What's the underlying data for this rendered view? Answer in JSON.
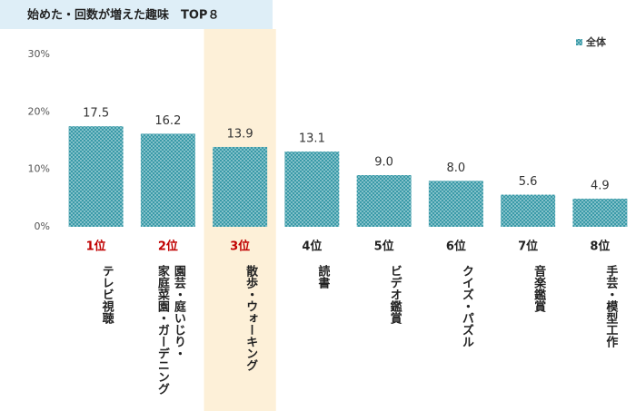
{
  "chart_data": {
    "type": "bar",
    "title": "始めた・回数が増えた趣味　TOP８",
    "categories": [
      "テレビ視聴",
      "園芸・庭いじり・\n家庭菜園・ガーデニング",
      "散歩・ウォーキング",
      "読書",
      "ビデオ鑑賞",
      "クイズ・パズル",
      "音楽鑑賞",
      "手芸・模型工作"
    ],
    "ranks": [
      "1位",
      "2位",
      "3位",
      "4位",
      "5位",
      "6位",
      "7位",
      "8位"
    ],
    "series": [
      {
        "name": "全体",
        "color": "#3a9aa8",
        "values": [
          17.5,
          16.2,
          13.9,
          13.1,
          9.0,
          8.0,
          5.6,
          4.9
        ],
        "value_labels": [
          "17.5",
          "16.2",
          "13.9",
          "13.1",
          "9.0",
          "8.0",
          "5.6",
          "4.9"
        ]
      }
    ],
    "ylim": [
      0,
      30
    ],
    "yticks": [
      {
        "value": 0,
        "label": "0%"
      },
      {
        "value": 10,
        "label": "10%"
      },
      {
        "value": 20,
        "label": "20%"
      },
      {
        "value": 30,
        "label": "30%"
      }
    ],
    "grid": false,
    "legend": "top-right",
    "highlight": 2,
    "highlight_color": "#fdf0d8",
    "top_ranks": 3,
    "top_rank_color": "#c00000"
  }
}
